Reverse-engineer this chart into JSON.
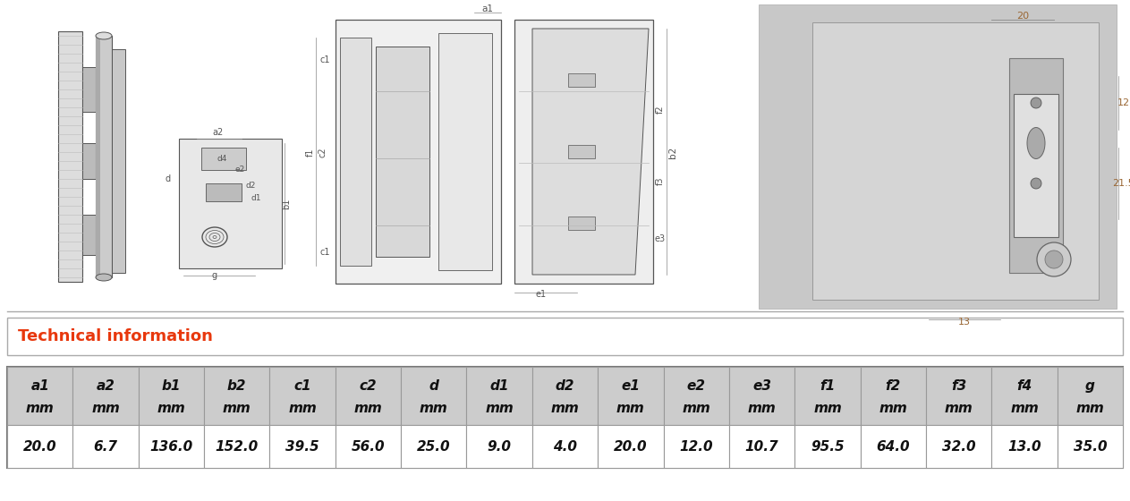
{
  "tech_info_label": "Technical information",
  "tech_info_color": "#E8380D",
  "col_labels_top": [
    "a1",
    "a2",
    "b1",
    "b2",
    "c1",
    "c2",
    "d",
    "d1",
    "d2",
    "e1",
    "e2",
    "e3",
    "f1",
    "f2",
    "f3",
    "f4",
    "g"
  ],
  "col_labels_unit": [
    "mm",
    "mm",
    "mm",
    "mm",
    "mm",
    "mm",
    "mm",
    "mm",
    "mm",
    "mm",
    "mm",
    "mm",
    "mm",
    "mm",
    "mm",
    "mm",
    "mm"
  ],
  "values": [
    "20.0",
    "6.7",
    "136.0",
    "152.0",
    "39.5",
    "56.0",
    "25.0",
    "9.0",
    "4.0",
    "20.0",
    "12.0",
    "10.7",
    "95.5",
    "64.0",
    "32.0",
    "13.0",
    "35.0"
  ],
  "header_bg": "#CCCCCC",
  "value_bg": "#FFFFFF",
  "border_color": "#999999",
  "fig_bg": "#FFFFFF",
  "tech_info_border": "#AAAAAA",
  "dim_color": "#555555",
  "dim_color2": "#996633",
  "line_color": "#555555"
}
